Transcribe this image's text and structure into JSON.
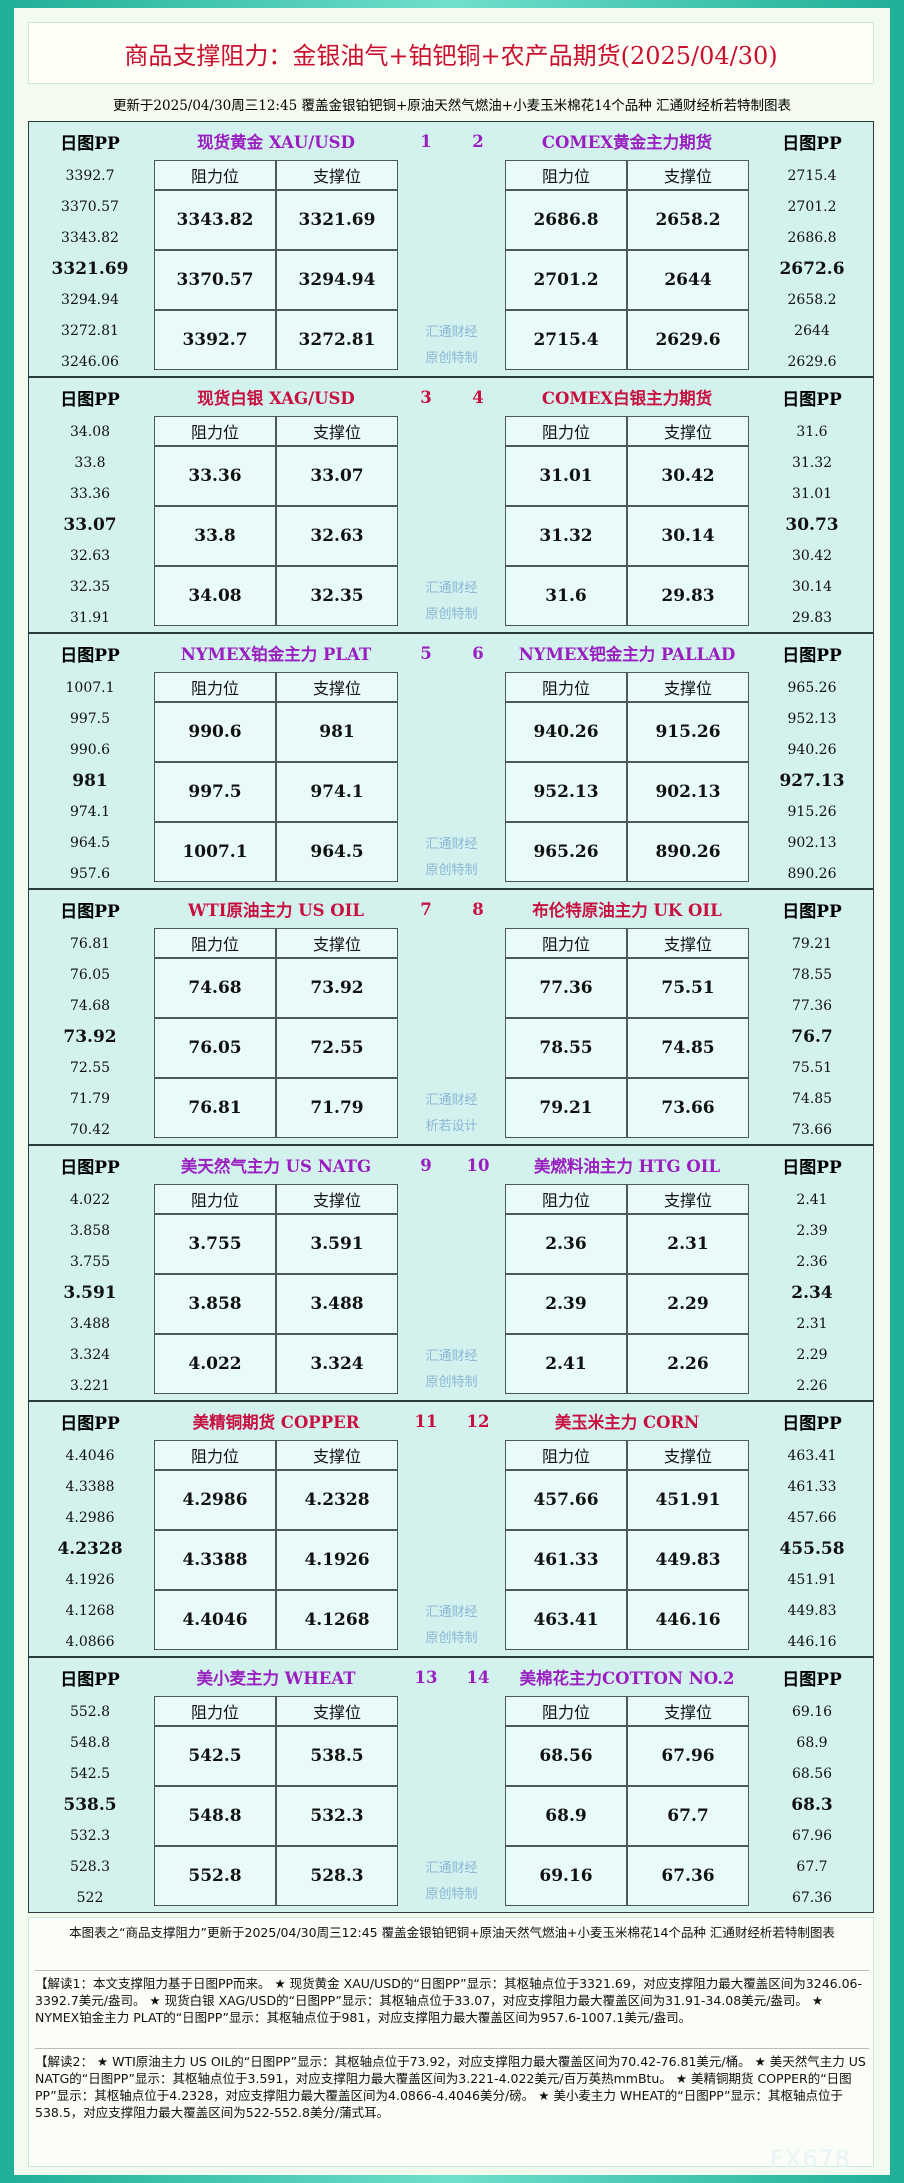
{
  "header": {
    "title": "商品支撑阻力：金银油气+铂钯铜+农产品期货(2025/04/30)",
    "subtitle": "更新于2025/04/30周三12:45 覆盖金银铂钯铜+原油天然气燃油+小麦玉米棉花14个品种 汇通财经析若特制图表"
  },
  "labels": {
    "pp": "日图PP",
    "resistance": "阻力位",
    "support": "支撑位"
  },
  "panels": [
    {
      "left": {
        "name": "现货黄金 XAU/USD",
        "number": 1,
        "pp": [
          3392.7,
          3370.57,
          3343.82,
          3321.69,
          3294.94,
          3272.81,
          3246.06
        ],
        "levels": [
          [
            3343.82,
            3321.69
          ],
          [
            3370.57,
            3294.94
          ],
          [
            3392.7,
            3272.81
          ]
        ]
      },
      "right": {
        "name": "COMEX黄金主力期货",
        "number": 2,
        "pp": [
          2715.4,
          2701.2,
          2686.8,
          2672.6,
          2658.2,
          2644,
          2629.6
        ],
        "levels": [
          [
            2686.8,
            2658.2
          ],
          [
            2701.2,
            2644
          ],
          [
            2715.4,
            2629.6
          ]
        ]
      },
      "watermark": [
        "汇通财经",
        "原创特制"
      ]
    },
    {
      "left": {
        "name": "现货白银 XAG/USD",
        "number": 3,
        "pp": [
          34.08,
          33.8,
          33.36,
          33.07,
          32.63,
          32.35,
          31.91
        ],
        "levels": [
          [
            33.36,
            33.07
          ],
          [
            33.8,
            32.63
          ],
          [
            34.08,
            32.35
          ]
        ]
      },
      "right": {
        "name": "COMEX白银主力期货",
        "number": 4,
        "pp": [
          31.6,
          31.32,
          31.01,
          30.73,
          30.42,
          30.14,
          29.83
        ],
        "levels": [
          [
            31.01,
            30.42
          ],
          [
            31.32,
            30.14
          ],
          [
            31.6,
            29.83
          ]
        ]
      },
      "watermark": [
        "汇通财经",
        "原创特制"
      ]
    },
    {
      "left": {
        "name": "NYMEX铂金主力 PLAT",
        "number": 5,
        "pp": [
          1007.1,
          997.5,
          990.6,
          981,
          974.1,
          964.5,
          957.6
        ],
        "levels": [
          [
            990.6,
            981
          ],
          [
            997.5,
            974.1
          ],
          [
            1007.1,
            964.5
          ]
        ]
      },
      "right": {
        "name": "NYMEX钯金主力 PALLAD",
        "number": 6,
        "pp": [
          965.26,
          952.13,
          940.26,
          927.13,
          915.26,
          902.13,
          890.26
        ],
        "levels": [
          [
            940.26,
            915.26
          ],
          [
            952.13,
            902.13
          ],
          [
            965.26,
            890.26
          ]
        ]
      },
      "watermark": [
        "汇通财经",
        "原创特制"
      ]
    },
    {
      "left": {
        "name": "WTI原油主力 US OIL",
        "number": 7,
        "pp": [
          76.81,
          76.05,
          74.68,
          73.92,
          72.55,
          71.79,
          70.42
        ],
        "levels": [
          [
            74.68,
            73.92
          ],
          [
            76.05,
            72.55
          ],
          [
            76.81,
            71.79
          ]
        ]
      },
      "right": {
        "name": "布伦特原油主力 UK OIL",
        "number": 8,
        "pp": [
          79.21,
          78.55,
          77.36,
          76.7,
          75.51,
          74.85,
          73.66
        ],
        "levels": [
          [
            77.36,
            75.51
          ],
          [
            78.55,
            74.85
          ],
          [
            79.21,
            73.66
          ]
        ]
      },
      "watermark": [
        "汇通财经",
        "析若设计"
      ]
    },
    {
      "left": {
        "name": "美天然气主力 US NATG",
        "number": 9,
        "pp": [
          4.022,
          3.858,
          3.755,
          3.591,
          3.488,
          3.324,
          3.221
        ],
        "levels": [
          [
            3.755,
            3.591
          ],
          [
            3.858,
            3.488
          ],
          [
            4.022,
            3.324
          ]
        ]
      },
      "right": {
        "name": "美燃料油主力 HTG OIL",
        "number": 10,
        "pp": [
          2.41,
          2.39,
          2.36,
          2.34,
          2.31,
          2.29,
          2.26
        ],
        "levels": [
          [
            2.36,
            2.31
          ],
          [
            2.39,
            2.29
          ],
          [
            2.41,
            2.26
          ]
        ]
      },
      "watermark": [
        "汇通财经",
        "原创特制"
      ]
    },
    {
      "left": {
        "name": "美精铜期货 COPPER",
        "number": 11,
        "pp": [
          4.4046,
          4.3388,
          4.2986,
          4.2328,
          4.1926,
          4.1268,
          4.0866
        ],
        "levels": [
          [
            4.2986,
            4.2328
          ],
          [
            4.3388,
            4.1926
          ],
          [
            4.4046,
            4.1268
          ]
        ]
      },
      "right": {
        "name": "美玉米主力 CORN",
        "number": 12,
        "pp": [
          463.41,
          461.33,
          457.66,
          455.58,
          451.91,
          449.83,
          446.16
        ],
        "levels": [
          [
            457.66,
            451.91
          ],
          [
            461.33,
            449.83
          ],
          [
            463.41,
            446.16
          ]
        ]
      },
      "watermark": [
        "汇通财经",
        "原创特制"
      ]
    },
    {
      "left": {
        "name": "美小麦主力 WHEAT",
        "number": 13,
        "pp": [
          552.8,
          548.8,
          542.5,
          538.5,
          532.3,
          528.3,
          522
        ],
        "levels": [
          [
            542.5,
            538.5
          ],
          [
            548.8,
            532.3
          ],
          [
            552.8,
            528.3
          ]
        ]
      },
      "right": {
        "name": "美棉花主力COTTON NO.2",
        "number": 14,
        "pp": [
          69.16,
          68.9,
          68.56,
          68.3,
          67.96,
          67.7,
          67.36
        ],
        "levels": [
          [
            68.56,
            67.96
          ],
          [
            68.9,
            67.7
          ],
          [
            69.16,
            67.36
          ]
        ]
      },
      "watermark": [
        "汇通财经",
        "原创特制"
      ]
    }
  ],
  "footer": {
    "text": "本图表之“商品支撑阻力”更新于2025/04/30周三12:45 覆盖金银铂钯铜+原油天然气燃油+小麦玉米棉花14个品种 汇通财经析若特制图表",
    "notes": [
      "【解读1：本文支撑阻力基于日图PP而来。 ★ 现货黄金 XAU/USD的“日图PP”显示：其枢轴点位于3321.69，对应支撑阻力最大覆盖区间为3246.06-3392.7美元/盎司。 ★ 现货白银 XAG/USD的“日图PP”显示：其枢轴点位于33.07，对应支撑阻力最大覆盖区间为31.91-34.08美元/盎司。 ★ NYMEX铂金主力 PLAT的“日图PP”显示：其枢轴点位于981，对应支撑阻力最大覆盖区间为957.6-1007.1美元/盎司。",
      "【解读2： ★ WTI原油主力 US OIL的“日图PP”显示：其枢轴点位于73.92，对应支撑阻力最大覆盖区间为70.42-76.81美元/桶。 ★ 美天然气主力 US NATG的“日图PP”显示：其枢轴点位于3.591，对应支撑阻力最大覆盖区间为3.221-4.022美元/百万英热mmBtu。 ★ 美精铜期货 COPPER的“日图PP”显示：其枢轴点位于4.2328，对应支撑阻力最大覆盖区间为4.0866-4.4046美分/磅。 ★ 美小麦主力 WHEAT的“日图PP”显示：其枢轴点位于538.5，对应支撑阻力最大覆盖区间为522-552.8美分/蒲式耳。"
    ]
  },
  "watermark": "FX678"
}
